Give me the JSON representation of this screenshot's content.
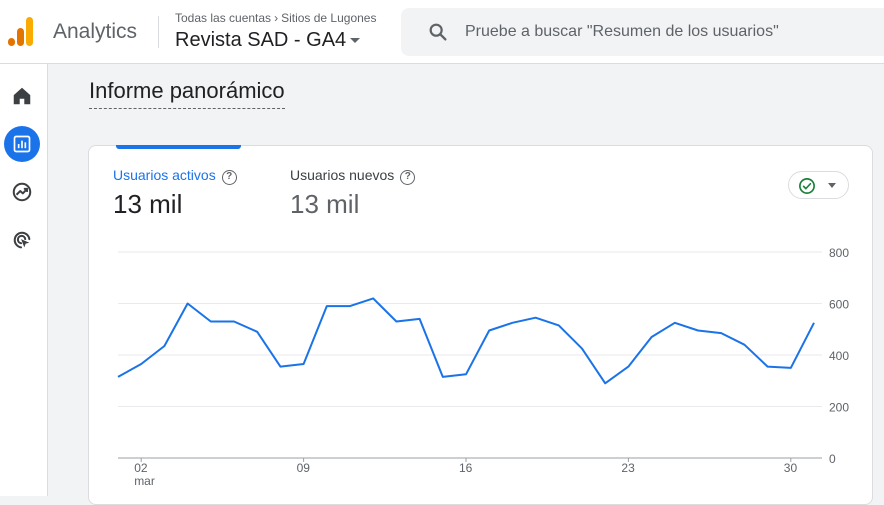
{
  "header": {
    "app_name": "Analytics",
    "breadcrumb": {
      "account": "Todas las cuentas",
      "separator": "›",
      "site": "Sitios de Lugones"
    },
    "property_name": "Revista SAD - GA4",
    "search_placeholder": "Pruebe a buscar \"Resumen de los usuarios\""
  },
  "sidebar": {
    "items": [
      {
        "icon": "home-icon",
        "active": false
      },
      {
        "icon": "reports-icon",
        "active": true
      },
      {
        "icon": "explore-icon",
        "active": false
      },
      {
        "icon": "advertising-icon",
        "active": false
      }
    ]
  },
  "main": {
    "title": "Informe panorámico"
  },
  "metrics": [
    {
      "label": "Usuarios activos",
      "value": "13 mil",
      "selected": true
    },
    {
      "label": "Usuarios nuevos",
      "value": "13 mil",
      "selected": false
    }
  ],
  "help_glyph": "?",
  "colors": {
    "accent": "#1a73e8",
    "check": "#188038"
  },
  "chart_data": {
    "type": "line",
    "y_ticks": [
      "800",
      "600",
      "400",
      "200",
      "0"
    ],
    "ylim": [
      0,
      800
    ],
    "x_ticks": [
      {
        "label": "02",
        "sublabel": "mar",
        "index": 1
      },
      {
        "label": "09",
        "sublabel": "",
        "index": 8
      },
      {
        "label": "16",
        "sublabel": "",
        "index": 15
      },
      {
        "label": "23",
        "sublabel": "",
        "index": 22
      },
      {
        "label": "30",
        "sublabel": "",
        "index": 29
      }
    ],
    "grid": true,
    "series": [
      {
        "values": [
          315,
          365,
          435,
          600,
          530,
          530,
          490,
          355,
          365,
          590,
          590,
          620,
          530,
          540,
          315,
          325,
          495,
          525,
          545,
          515,
          425,
          290,
          355,
          470,
          525,
          495,
          485,
          440,
          355,
          350,
          525
        ]
      }
    ]
  }
}
